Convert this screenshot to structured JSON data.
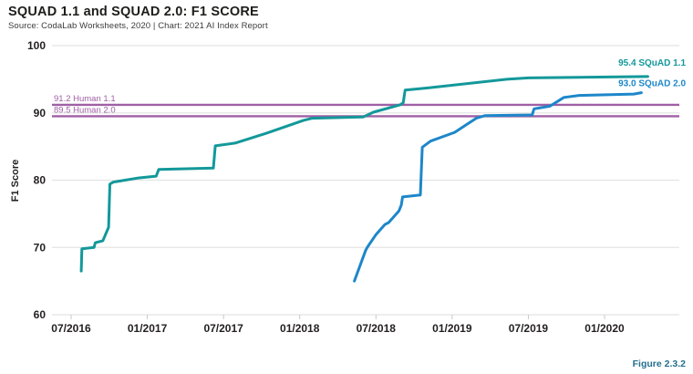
{
  "header": {
    "title": "SQUAD 1.1 and SQUAD 2.0: F1 SCORE",
    "source": "Source: CodaLab Worksheets, 2020 | Chart: 2021 AI Index Report"
  },
  "footer": {
    "figure_label": "Figure 2.3.2"
  },
  "colors": {
    "squad11": "#13989a",
    "squad20": "#1d87c9",
    "human": "#a05fa5",
    "grid": "#e4e4e4",
    "tick_mark": "#c8c8c8",
    "axis_text": "#231f20",
    "figure": "#24708e"
  },
  "chart_data": {
    "type": "line",
    "title": "SQUAD 1.1 and SQUAD 2.0: F1 SCORE",
    "xlabel": "",
    "ylabel": "F1 Score",
    "ylim": [
      60,
      100
    ],
    "grid": "horizontal",
    "y_ticks": [
      100,
      90,
      80,
      70,
      60
    ],
    "x_unit": "months since 2016-07",
    "x_ticks": [
      {
        "month": 0,
        "label": "07/2016"
      },
      {
        "month": 6,
        "label": "01/2017"
      },
      {
        "month": 12,
        "label": "07/2017"
      },
      {
        "month": 18,
        "label": "01/2018"
      },
      {
        "month": 24,
        "label": "07/2018"
      },
      {
        "month": 30,
        "label": "01/2019"
      },
      {
        "month": 36,
        "label": "07/2019"
      },
      {
        "month": 42,
        "label": "01/2020"
      }
    ],
    "reference_lines": [
      {
        "name": "Human 1.1",
        "value": 91.2,
        "label": "91.2 Human 1.1",
        "color_key": "human"
      },
      {
        "name": "Human 2.0",
        "value": 89.5,
        "label": "89.5 Human 2.0",
        "color_key": "human"
      }
    ],
    "series": [
      {
        "name": "SQuAD 1.1",
        "final_value": 95.4,
        "label": "95.4 SQuAD 1.1",
        "color_key": "squad11",
        "points": [
          [
            0.8,
            66.5
          ],
          [
            0.85,
            69.8
          ],
          [
            1.8,
            70.0
          ],
          [
            1.9,
            70.7
          ],
          [
            2.5,
            71.0
          ],
          [
            2.95,
            73.0
          ],
          [
            3.05,
            79.4
          ],
          [
            3.3,
            79.7
          ],
          [
            5.2,
            80.3
          ],
          [
            6.7,
            80.6
          ],
          [
            6.9,
            81.6
          ],
          [
            11.2,
            81.8
          ],
          [
            11.35,
            85.1
          ],
          [
            12.9,
            85.5
          ],
          [
            15.4,
            87.0
          ],
          [
            18.3,
            88.9
          ],
          [
            19.0,
            89.2
          ],
          [
            23.0,
            89.4
          ],
          [
            23.8,
            90.1
          ],
          [
            25.9,
            91.2
          ],
          [
            26.15,
            91.5
          ],
          [
            26.3,
            93.4
          ],
          [
            28.0,
            93.7
          ],
          [
            34.3,
            95.0
          ],
          [
            36.0,
            95.2
          ],
          [
            45.4,
            95.4
          ]
        ]
      },
      {
        "name": "SQuAD 2.0",
        "final_value": 93.0,
        "label": "93.0 SQuAD 2.0",
        "color_key": "squad20",
        "points": [
          [
            22.3,
            65.0
          ],
          [
            23.2,
            69.6
          ],
          [
            23.35,
            70.1
          ],
          [
            24.0,
            71.9
          ],
          [
            24.7,
            73.4
          ],
          [
            25.0,
            73.7
          ],
          [
            25.8,
            75.4
          ],
          [
            26.0,
            76.3
          ],
          [
            26.1,
            77.5
          ],
          [
            27.5,
            77.8
          ],
          [
            27.65,
            84.9
          ],
          [
            28.3,
            85.8
          ],
          [
            30.2,
            87.1
          ],
          [
            31.9,
            89.2
          ],
          [
            32.6,
            89.6
          ],
          [
            36.3,
            89.7
          ],
          [
            36.45,
            90.6
          ],
          [
            37.7,
            91.0
          ],
          [
            38.8,
            92.3
          ],
          [
            40.0,
            92.6
          ],
          [
            44.3,
            92.8
          ],
          [
            44.9,
            93.0
          ]
        ]
      }
    ]
  }
}
